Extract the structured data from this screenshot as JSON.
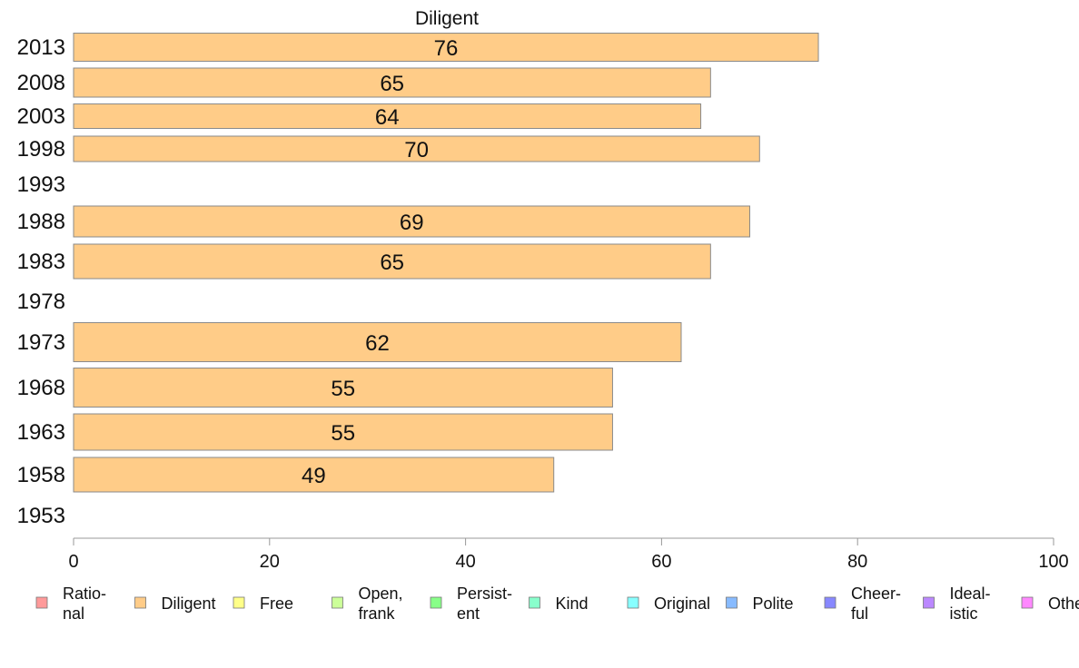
{
  "chart_data": {
    "type": "bar",
    "orientation": "horizontal",
    "title": "Diligent",
    "xlabel": "",
    "ylabel": "",
    "xlim": [
      0,
      100
    ],
    "x_ticks": [
      0,
      20,
      40,
      60,
      80,
      100
    ],
    "grid": false,
    "legend_position": "bottom",
    "bar_color": "#FFCC88",
    "categories": [
      "2013",
      "2008",
      "2003",
      "1998",
      "1993",
      "1988",
      "1983",
      "1978",
      "1973",
      "1968",
      "1963",
      "1958",
      "1953"
    ],
    "values": [
      76,
      65,
      64,
      70,
      null,
      69,
      65,
      null,
      62,
      55,
      55,
      49,
      null
    ],
    "series": [
      {
        "name": "Diligent",
        "values": [
          76,
          65,
          64,
          70,
          null,
          69,
          65,
          null,
          62,
          55,
          55,
          49,
          null
        ]
      }
    ],
    "legend": [
      {
        "label": "Ratio-\nnal",
        "color": "#FF9A9A"
      },
      {
        "label": "Diligent",
        "color": "#FFCC88"
      },
      {
        "label": "Free",
        "color": "#FFFF88"
      },
      {
        "label": "Open,\nfrank",
        "color": "#CCFF99"
      },
      {
        "label": "Persist-\nent",
        "color": "#88FF88"
      },
      {
        "label": "Kind",
        "color": "#88FFCC"
      },
      {
        "label": "Original",
        "color": "#88FFFF"
      },
      {
        "label": "Polite",
        "color": "#88BBFF"
      },
      {
        "label": "Cheer-\nful",
        "color": "#8888FF"
      },
      {
        "label": "Ideal-\nistic",
        "color": "#BB88FF"
      },
      {
        "label": "Others",
        "color": "#FF88FF"
      }
    ]
  }
}
